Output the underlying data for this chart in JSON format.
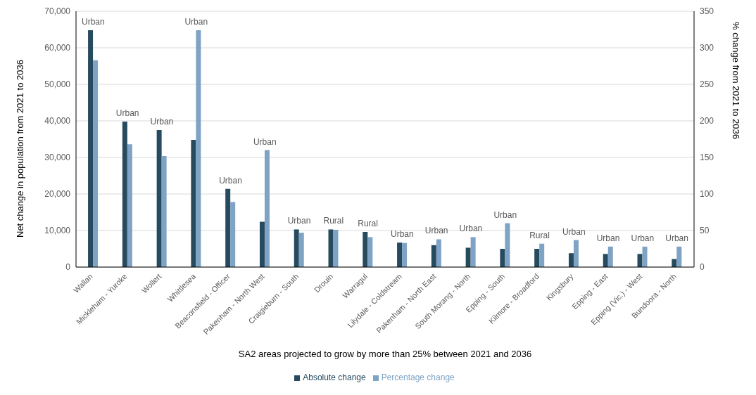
{
  "chart_data": {
    "type": "bar",
    "xlabel": "SA2 areas projected to grow by more than 25% between 2021 and 2036",
    "ylabel": "Net change in population from 2021 to 2036",
    "y2label": "% change from 2021 to 2036",
    "categories": [
      "Wallan",
      "Mickleham - Yuroke",
      "Wollert",
      "Whittlesea",
      "Beaconsfield - Officer",
      "Pakenham - North West",
      "Craigieburn - South",
      "Drouin",
      "Warragul",
      "Lilydale - Coldstream",
      "Pakenham - North East",
      "South Morang - North",
      "Epping - South",
      "Kilmore - Broadford",
      "Kingsbury",
      "Epping - East",
      "Epping (Vic.) - West",
      "Bundoora - North"
    ],
    "series": [
      {
        "name": "Absolute change",
        "color": "#264a5e",
        "values": [
          64800,
          39800,
          37500,
          34800,
          21400,
          12400,
          10300,
          10300,
          9600,
          6700,
          6000,
          5300,
          5000,
          5000,
          3800,
          3600,
          3600,
          2200
        ]
      },
      {
        "name": "Percentage change",
        "color": "#7ea3c4",
        "axis": "y2",
        "values": [
          283,
          168,
          152,
          324,
          89,
          160,
          47,
          51,
          41,
          33,
          38,
          41,
          60,
          32,
          37,
          28,
          28,
          28
        ]
      }
    ],
    "ylim": [
      0,
      70000
    ],
    "yticks": [
      {
        "value": 0,
        "label": "0"
      },
      {
        "value": 10000,
        "label": "10,000"
      },
      {
        "value": 20000,
        "label": "20,000"
      },
      {
        "value": 30000,
        "label": "30,000"
      },
      {
        "value": 40000,
        "label": "40,000"
      },
      {
        "value": 50000,
        "label": "50,000"
      },
      {
        "value": 60000,
        "label": "60,000"
      },
      {
        "value": 70000,
        "label": "70,000"
      }
    ],
    "y2lim": [
      0,
      350
    ],
    "y2ticks": [
      0,
      50,
      100,
      150,
      200,
      250,
      300,
      350
    ],
    "grid": "y",
    "legend": "bottom",
    "annotations": [
      {
        "text": "Urban",
        "x": "Wallan",
        "y": 64800
      },
      {
        "text": "Urban",
        "x": "Mickleham - Yuroke",
        "y": 39800
      },
      {
        "text": "Urban",
        "x": "Wollert",
        "y": 37500
      },
      {
        "text": "Urban",
        "x": "Whittlesea",
        "y": 64800
      },
      {
        "text": "Urban",
        "x": "Beaconsfield - Officer",
        "y": 21400
      },
      {
        "text": "Urban",
        "x": "Pakenham - North West",
        "y": 32000
      },
      {
        "text": "Urban",
        "x": "Craigieburn - South",
        "y": 10300
      },
      {
        "text": "Rural",
        "x": "Drouin",
        "y": 10300
      },
      {
        "text": "Rural",
        "x": "Warragul",
        "y": 9600
      },
      {
        "text": "Urban",
        "x": "Lilydale - Coldstream",
        "y": 6700
      },
      {
        "text": "Urban",
        "x": "Pakenham - North East",
        "y": 7600
      },
      {
        "text": "Urban",
        "x": "South Morang - North",
        "y": 8200
      },
      {
        "text": "Urban",
        "x": "Epping - South",
        "y": 12000
      },
      {
        "text": "Rural",
        "x": "Kilmore - Broadford",
        "y": 6400
      },
      {
        "text": "Urban",
        "x": "Kingsbury",
        "y": 7400
      },
      {
        "text": "Urban",
        "x": "Epping - East",
        "y": 5600
      },
      {
        "text": "Urban",
        "x": "Epping (Vic.) - West",
        "y": 5600
      },
      {
        "text": "Urban",
        "x": "Bundoora - North",
        "y": 5600
      }
    ]
  }
}
